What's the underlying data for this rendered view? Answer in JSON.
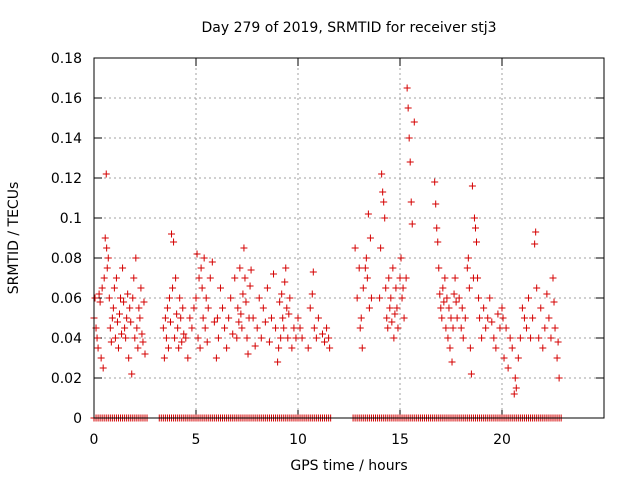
{
  "chart_data": {
    "type": "scatter",
    "title": "Day 279 of 2019, SRMTID for receiver stj3",
    "xlabel": "GPS time / hours",
    "ylabel": "SRMTID / TECUs",
    "xlim": [
      0,
      25
    ],
    "ylim": [
      0,
      0.18
    ],
    "xticks": [
      {
        "value": 0,
        "label": "0"
      },
      {
        "value": 5,
        "label": "5"
      },
      {
        "value": 10,
        "label": "10"
      },
      {
        "value": 15,
        "label": "15"
      },
      {
        "value": 20,
        "label": "20"
      }
    ],
    "yticks": [
      {
        "value": 0,
        "label": "0"
      },
      {
        "value": 0.02,
        "label": "0.02"
      },
      {
        "value": 0.04,
        "label": "0.04"
      },
      {
        "value": 0.06,
        "label": "0.06"
      },
      {
        "value": 0.08,
        "label": "0.08"
      },
      {
        "value": 0.1,
        "label": "0.1"
      },
      {
        "value": 0.12,
        "label": "0.12"
      },
      {
        "value": 0.14,
        "label": "0.14"
      },
      {
        "value": 0.16,
        "label": "0.16"
      },
      {
        "value": 0.18,
        "label": "0.18"
      }
    ],
    "grid": true,
    "marker": "+",
    "color": "#d40000",
    "zero_segments": [
      [
        0.0,
        2.6
      ],
      [
        3.2,
        11.6
      ],
      [
        12.7,
        22.9
      ]
    ],
    "series": [
      {
        "name": "SRMTID",
        "points": [
          [
            0.0,
            0.05
          ],
          [
            0.05,
            0.06
          ],
          [
            0.1,
            0.045
          ],
          [
            0.15,
            0.04
          ],
          [
            0.2,
            0.035
          ],
          [
            0.25,
            0.062
          ],
          [
            0.3,
            0.058
          ],
          [
            0.35,
            0.03
          ],
          [
            0.4,
            0.065
          ],
          [
            0.45,
            0.025
          ],
          [
            0.5,
            0.07
          ],
          [
            0.55,
            0.09
          ],
          [
            0.6,
            0.122
          ],
          [
            0.62,
            0.085
          ],
          [
            0.65,
            0.075
          ],
          [
            0.7,
            0.08
          ],
          [
            0.75,
            0.06
          ],
          [
            0.8,
            0.045
          ],
          [
            0.85,
            0.038
          ],
          [
            0.9,
            0.05
          ],
          [
            0.95,
            0.055
          ],
          [
            1.0,
            0.065
          ],
          [
            1.05,
            0.04
          ],
          [
            1.1,
            0.07
          ],
          [
            1.15,
            0.048
          ],
          [
            1.2,
            0.035
          ],
          [
            1.25,
            0.052
          ],
          [
            1.3,
            0.06
          ],
          [
            1.35,
            0.042
          ],
          [
            1.4,
            0.075
          ],
          [
            1.45,
            0.058
          ],
          [
            1.5,
            0.045
          ],
          [
            1.55,
            0.04
          ],
          [
            1.6,
            0.05
          ],
          [
            1.65,
            0.062
          ],
          [
            1.7,
            0.03
          ],
          [
            1.75,
            0.055
          ],
          [
            1.8,
            0.048
          ],
          [
            1.85,
            0.022
          ],
          [
            1.9,
            0.06
          ],
          [
            1.95,
            0.07
          ],
          [
            2.0,
            0.04
          ],
          [
            2.05,
            0.08
          ],
          [
            2.1,
            0.045
          ],
          [
            2.15,
            0.035
          ],
          [
            2.2,
            0.055
          ],
          [
            2.25,
            0.05
          ],
          [
            2.3,
            0.065
          ],
          [
            2.35,
            0.042
          ],
          [
            2.4,
            0.038
          ],
          [
            2.45,
            0.058
          ],
          [
            2.5,
            0.032
          ],
          [
            3.4,
            0.045
          ],
          [
            3.45,
            0.03
          ],
          [
            3.5,
            0.05
          ],
          [
            3.55,
            0.04
          ],
          [
            3.6,
            0.055
          ],
          [
            3.65,
            0.035
          ],
          [
            3.7,
            0.06
          ],
          [
            3.75,
            0.048
          ],
          [
            3.8,
            0.092
          ],
          [
            3.85,
            0.065
          ],
          [
            3.9,
            0.088
          ],
          [
            3.95,
            0.04
          ],
          [
            4.0,
            0.07
          ],
          [
            4.05,
            0.052
          ],
          [
            4.1,
            0.045
          ],
          [
            4.15,
            0.035
          ],
          [
            4.2,
            0.06
          ],
          [
            4.25,
            0.05
          ],
          [
            4.3,
            0.038
          ],
          [
            4.35,
            0.055
          ],
          [
            4.4,
            0.042
          ],
          [
            4.5,
            0.04
          ],
          [
            4.6,
            0.03
          ],
          [
            4.7,
            0.05
          ],
          [
            4.8,
            0.045
          ],
          [
            4.9,
            0.055
          ],
          [
            5.0,
            0.06
          ],
          [
            5.05,
            0.082
          ],
          [
            5.1,
            0.04
          ],
          [
            5.15,
            0.07
          ],
          [
            5.2,
            0.035
          ],
          [
            5.25,
            0.075
          ],
          [
            5.3,
            0.065
          ],
          [
            5.35,
            0.05
          ],
          [
            5.4,
            0.08
          ],
          [
            5.45,
            0.045
          ],
          [
            5.5,
            0.06
          ],
          [
            5.55,
            0.038
          ],
          [
            5.6,
            0.055
          ],
          [
            5.7,
            0.07
          ],
          [
            5.8,
            0.078
          ],
          [
            5.9,
            0.048
          ],
          [
            6.0,
            0.03
          ],
          [
            6.05,
            0.05
          ],
          [
            6.1,
            0.04
          ],
          [
            6.2,
            0.065
          ],
          [
            6.3,
            0.055
          ],
          [
            6.4,
            0.045
          ],
          [
            6.5,
            0.035
          ],
          [
            6.6,
            0.05
          ],
          [
            6.7,
            0.06
          ],
          [
            6.8,
            0.042
          ],
          [
            6.9,
            0.07
          ],
          [
            7.0,
            0.04
          ],
          [
            7.05,
            0.055
          ],
          [
            7.1,
            0.048
          ],
          [
            7.15,
            0.075
          ],
          [
            7.2,
            0.052
          ],
          [
            7.25,
            0.045
          ],
          [
            7.3,
            0.062
          ],
          [
            7.35,
            0.085
          ],
          [
            7.4,
            0.07
          ],
          [
            7.45,
            0.058
          ],
          [
            7.5,
            0.04
          ],
          [
            7.55,
            0.032
          ],
          [
            7.6,
            0.05
          ],
          [
            7.65,
            0.066
          ],
          [
            7.7,
            0.074
          ],
          [
            7.8,
            0.05
          ],
          [
            7.9,
            0.036
          ],
          [
            8.0,
            0.045
          ],
          [
            8.1,
            0.06
          ],
          [
            8.2,
            0.04
          ],
          [
            8.3,
            0.055
          ],
          [
            8.4,
            0.048
          ],
          [
            8.5,
            0.065
          ],
          [
            8.6,
            0.038
          ],
          [
            8.7,
            0.05
          ],
          [
            8.8,
            0.072
          ],
          [
            8.9,
            0.045
          ],
          [
            9.0,
            0.028
          ],
          [
            9.05,
            0.035
          ],
          [
            9.1,
            0.058
          ],
          [
            9.15,
            0.04
          ],
          [
            9.2,
            0.062
          ],
          [
            9.25,
            0.05
          ],
          [
            9.3,
            0.045
          ],
          [
            9.35,
            0.068
          ],
          [
            9.4,
            0.075
          ],
          [
            9.45,
            0.055
          ],
          [
            9.5,
            0.04
          ],
          [
            9.55,
            0.052
          ],
          [
            9.6,
            0.06
          ],
          [
            9.7,
            0.035
          ],
          [
            9.8,
            0.045
          ],
          [
            9.9,
            0.04
          ],
          [
            10.0,
            0.05
          ],
          [
            10.1,
            0.045
          ],
          [
            10.2,
            0.04
          ],
          [
            10.5,
            0.035
          ],
          [
            10.6,
            0.055
          ],
          [
            10.7,
            0.062
          ],
          [
            10.75,
            0.073
          ],
          [
            10.8,
            0.045
          ],
          [
            10.9,
            0.04
          ],
          [
            11.0,
            0.05
          ],
          [
            11.2,
            0.042
          ],
          [
            11.3,
            0.038
          ],
          [
            11.4,
            0.045
          ],
          [
            11.5,
            0.04
          ],
          [
            11.55,
            0.035
          ],
          [
            12.8,
            0.085
          ],
          [
            12.9,
            0.06
          ],
          [
            13.0,
            0.075
          ],
          [
            13.05,
            0.045
          ],
          [
            13.1,
            0.05
          ],
          [
            13.15,
            0.035
          ],
          [
            13.2,
            0.065
          ],
          [
            13.3,
            0.075
          ],
          [
            13.35,
            0.08
          ],
          [
            13.4,
            0.07
          ],
          [
            13.45,
            0.102
          ],
          [
            13.5,
            0.055
          ],
          [
            13.55,
            0.09
          ],
          [
            13.6,
            0.06
          ],
          [
            14.0,
            0.06
          ],
          [
            14.05,
            0.085
          ],
          [
            14.1,
            0.122
          ],
          [
            14.15,
            0.113
          ],
          [
            14.2,
            0.108
          ],
          [
            14.25,
            0.1
          ],
          [
            14.3,
            0.065
          ],
          [
            14.35,
            0.05
          ],
          [
            14.4,
            0.045
          ],
          [
            14.45,
            0.07
          ],
          [
            14.5,
            0.055
          ],
          [
            14.55,
            0.06
          ],
          [
            14.6,
            0.048
          ],
          [
            14.65,
            0.075
          ],
          [
            14.7,
            0.04
          ],
          [
            14.75,
            0.052
          ],
          [
            14.8,
            0.065
          ],
          [
            14.85,
            0.055
          ],
          [
            14.9,
            0.045
          ],
          [
            15.0,
            0.07
          ],
          [
            15.05,
            0.08
          ],
          [
            15.1,
            0.06
          ],
          [
            15.15,
            0.065
          ],
          [
            15.2,
            0.05
          ],
          [
            15.3,
            0.07
          ],
          [
            15.35,
            0.165
          ],
          [
            15.4,
            0.155
          ],
          [
            15.45,
            0.14
          ],
          [
            15.5,
            0.128
          ],
          [
            15.55,
            0.108
          ],
          [
            15.6,
            0.097
          ],
          [
            15.7,
            0.148
          ],
          [
            16.7,
            0.118
          ],
          [
            16.75,
            0.107
          ],
          [
            16.8,
            0.095
          ],
          [
            16.85,
            0.088
          ],
          [
            16.9,
            0.075
          ],
          [
            16.95,
            0.062
          ],
          [
            17.0,
            0.055
          ],
          [
            17.05,
            0.05
          ],
          [
            17.1,
            0.065
          ],
          [
            17.15,
            0.058
          ],
          [
            17.2,
            0.07
          ],
          [
            17.25,
            0.045
          ],
          [
            17.3,
            0.06
          ],
          [
            17.35,
            0.04
          ],
          [
            17.4,
            0.055
          ],
          [
            17.45,
            0.035
          ],
          [
            17.5,
            0.05
          ],
          [
            17.55,
            0.028
          ],
          [
            17.6,
            0.045
          ],
          [
            17.65,
            0.062
          ],
          [
            17.7,
            0.07
          ],
          [
            17.75,
            0.058
          ],
          [
            17.8,
            0.05
          ],
          [
            17.9,
            0.06
          ],
          [
            18.0,
            0.045
          ],
          [
            18.05,
            0.055
          ],
          [
            18.1,
            0.04
          ],
          [
            18.2,
            0.05
          ],
          [
            18.3,
            0.075
          ],
          [
            18.35,
            0.08
          ],
          [
            18.4,
            0.065
          ],
          [
            18.45,
            0.035
          ],
          [
            18.5,
            0.022
          ],
          [
            18.55,
            0.116
          ],
          [
            18.6,
            0.07
          ],
          [
            18.65,
            0.1
          ],
          [
            18.7,
            0.095
          ],
          [
            18.75,
            0.088
          ],
          [
            18.8,
            0.07
          ],
          [
            18.85,
            0.06
          ],
          [
            18.9,
            0.05
          ],
          [
            19.0,
            0.04
          ],
          [
            19.1,
            0.055
          ],
          [
            19.2,
            0.045
          ],
          [
            19.3,
            0.05
          ],
          [
            19.4,
            0.06
          ],
          [
            19.5,
            0.048
          ],
          [
            19.6,
            0.04
          ],
          [
            19.7,
            0.035
          ],
          [
            19.8,
            0.052
          ],
          [
            19.9,
            0.045
          ],
          [
            20.0,
            0.055
          ],
          [
            20.05,
            0.05
          ],
          [
            20.1,
            0.03
          ],
          [
            20.2,
            0.045
          ],
          [
            20.3,
            0.025
          ],
          [
            20.4,
            0.04
          ],
          [
            20.5,
            0.035
          ],
          [
            20.6,
            0.012
          ],
          [
            20.65,
            0.02
          ],
          [
            20.7,
            0.015
          ],
          [
            20.8,
            0.03
          ],
          [
            20.9,
            0.04
          ],
          [
            21.0,
            0.055
          ],
          [
            21.1,
            0.05
          ],
          [
            21.2,
            0.045
          ],
          [
            21.3,
            0.06
          ],
          [
            21.4,
            0.04
          ],
          [
            21.5,
            0.05
          ],
          [
            21.6,
            0.087
          ],
          [
            21.65,
            0.093
          ],
          [
            21.7,
            0.065
          ],
          [
            21.8,
            0.04
          ],
          [
            21.9,
            0.055
          ],
          [
            22.0,
            0.035
          ],
          [
            22.1,
            0.045
          ],
          [
            22.2,
            0.062
          ],
          [
            22.3,
            0.05
          ],
          [
            22.4,
            0.04
          ],
          [
            22.5,
            0.07
          ],
          [
            22.55,
            0.058
          ],
          [
            22.6,
            0.045
          ],
          [
            22.7,
            0.03
          ],
          [
            22.75,
            0.038
          ],
          [
            22.8,
            0.02
          ]
        ]
      }
    ]
  }
}
